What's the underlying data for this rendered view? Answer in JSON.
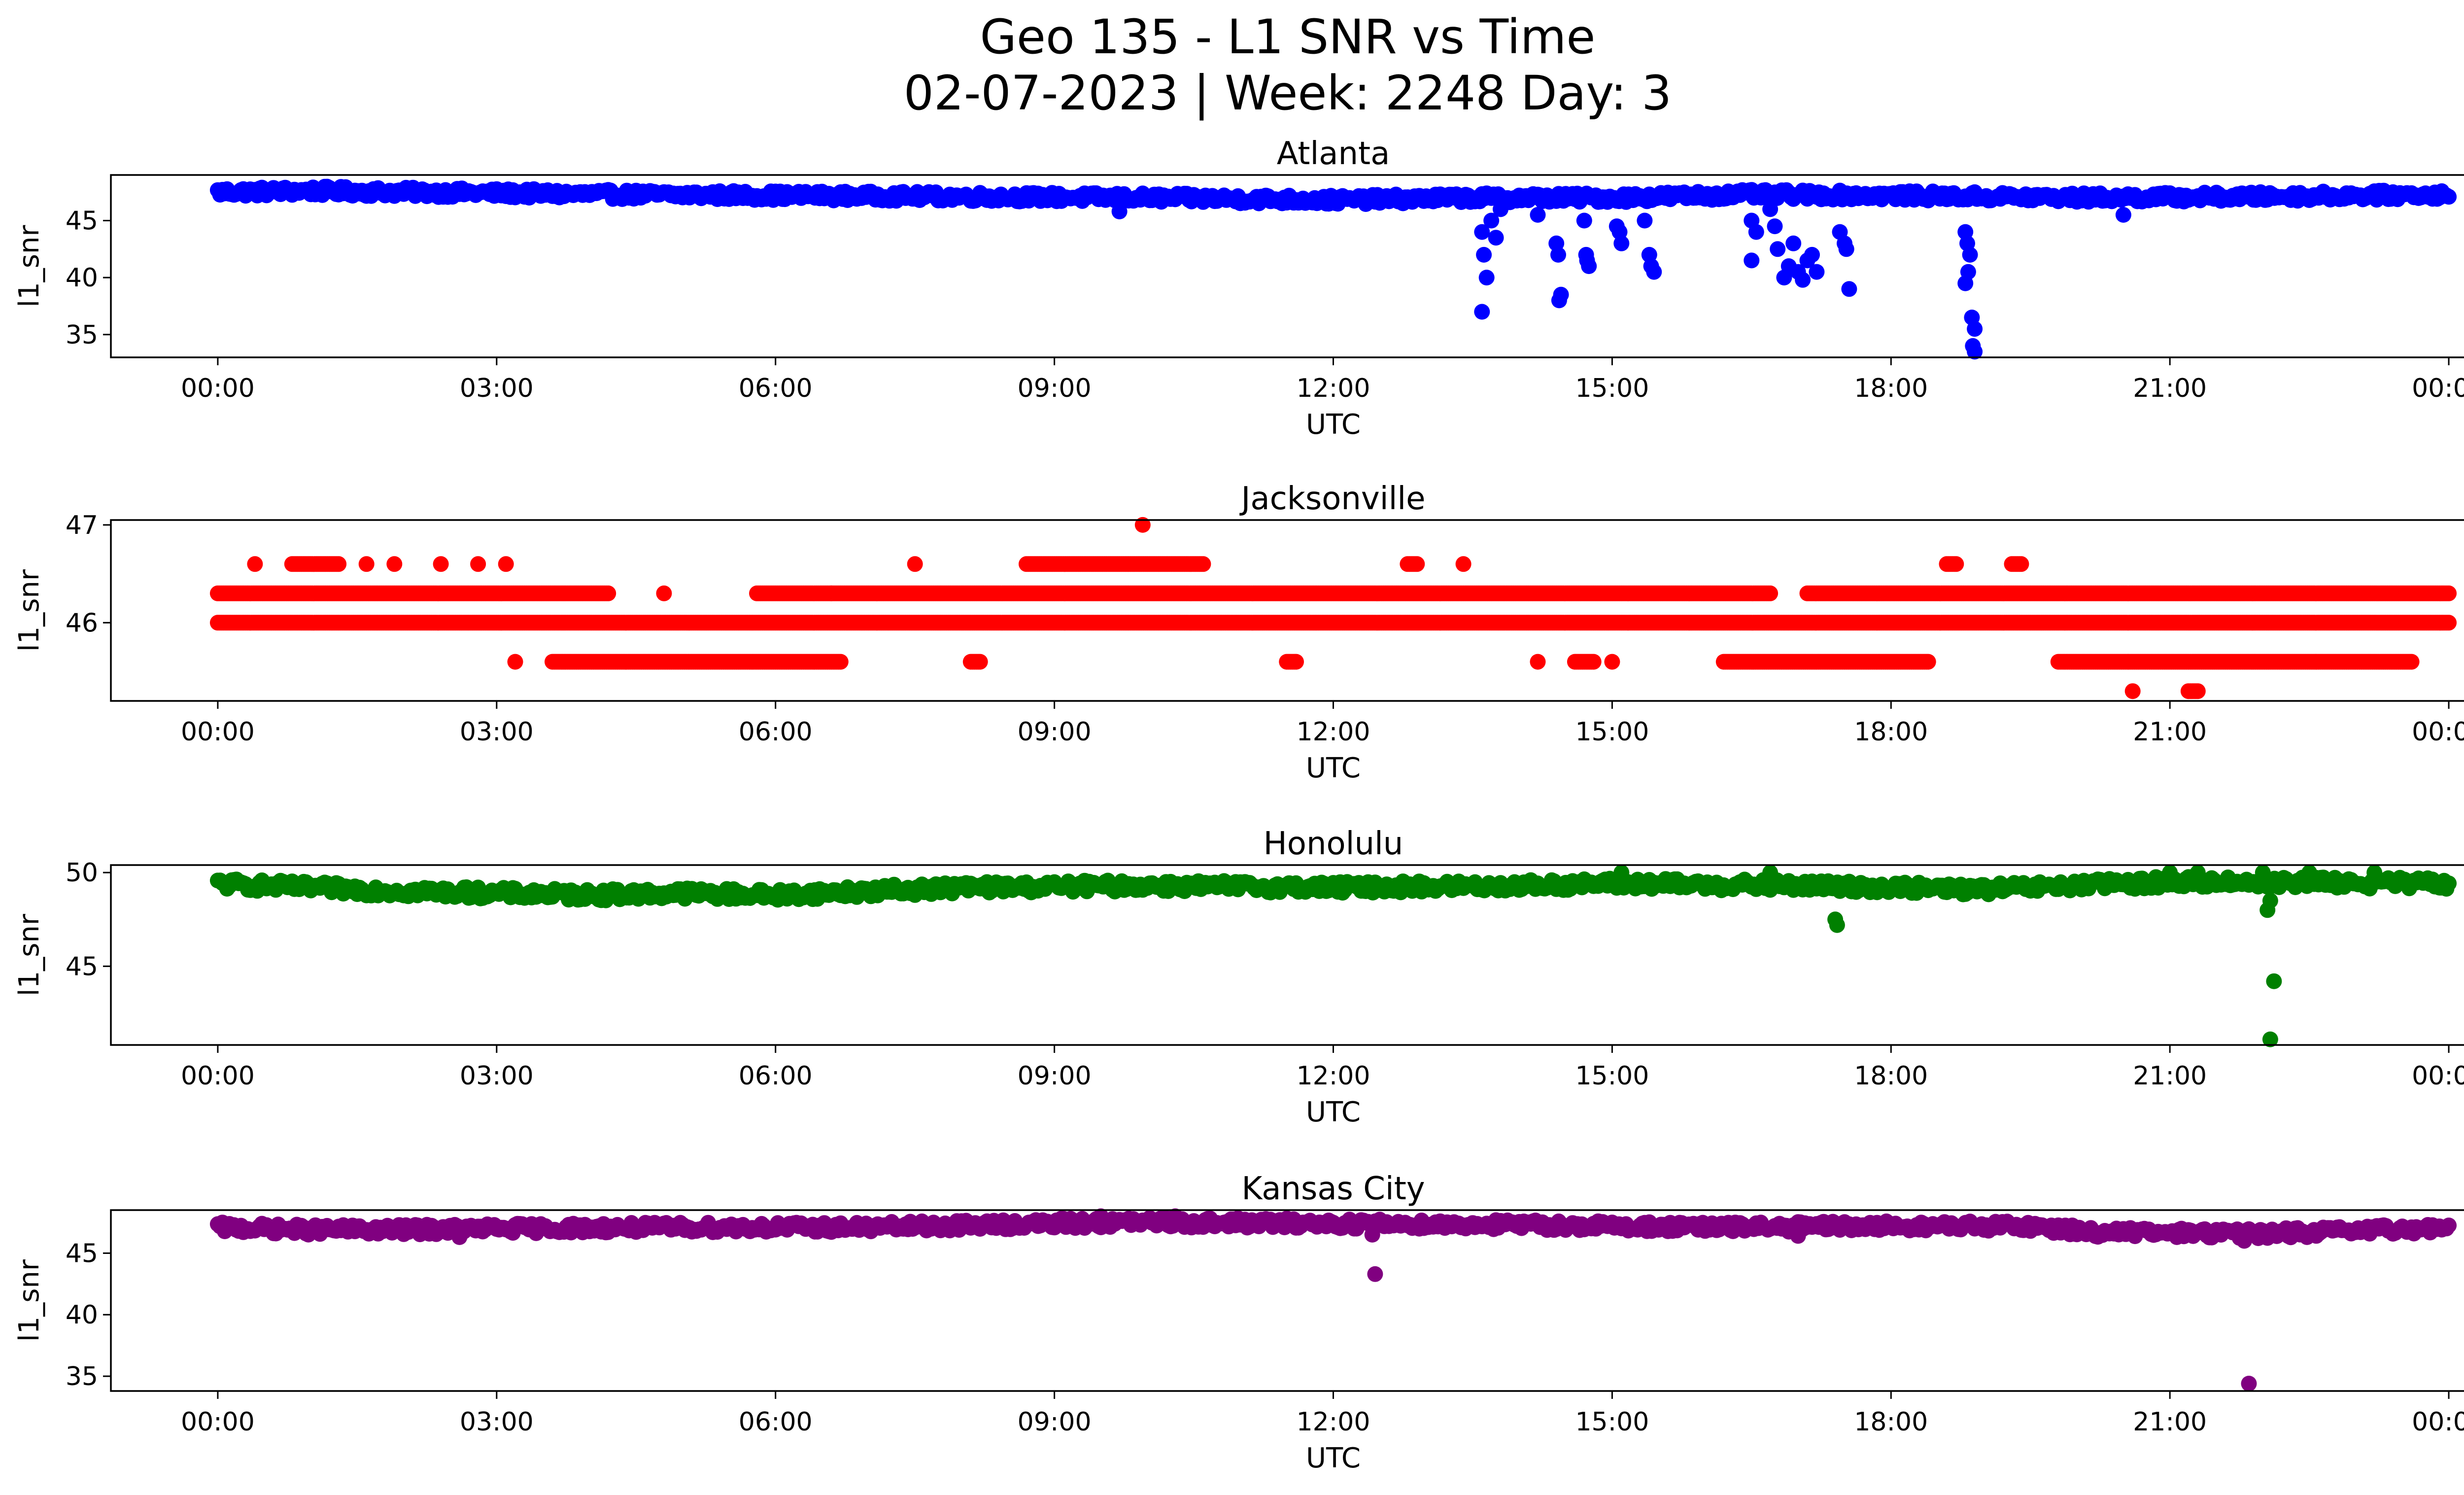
{
  "figure": {
    "title_line1": "Geo 135 - L1 SNR vs Time",
    "title_line2": "02-07-2023 | Week: 2248 Day: 3"
  },
  "chart_data": [
    {
      "type": "scatter",
      "title": "Atlanta",
      "xlabel": "UTC",
      "ylabel": "l1_snr",
      "color": "#0000ff",
      "xlim_hours": [
        -1.15,
        25.15
      ],
      "ylim": [
        33,
        49
      ],
      "xticks": [
        "00:00",
        "03:00",
        "06:00",
        "09:00",
        "12:00",
        "15:00",
        "18:00",
        "21:00",
        "00:00"
      ],
      "yticks": [
        35,
        40,
        45
      ],
      "baseline": [
        [
          0,
          47.5
        ],
        [
          1,
          47.6
        ],
        [
          2,
          47.5
        ],
        [
          3,
          47.4
        ],
        [
          4,
          47.3
        ],
        [
          6,
          47.2
        ],
        [
          8,
          47.1
        ],
        [
          10,
          47.0
        ],
        [
          12,
          46.8
        ],
        [
          13.5,
          47.0
        ],
        [
          15,
          47.0
        ],
        [
          16.5,
          47.3
        ],
        [
          18,
          47.2
        ],
        [
          20,
          47.0
        ],
        [
          22,
          47.1
        ],
        [
          24,
          47.3
        ]
      ],
      "band": 0.8,
      "outliers": [
        [
          13.6,
          44
        ],
        [
          13.62,
          42
        ],
        [
          13.65,
          40
        ],
        [
          13.6,
          37
        ],
        [
          13.7,
          45
        ],
        [
          13.8,
          46
        ],
        [
          13.75,
          43.5
        ],
        [
          14.2,
          45.5
        ],
        [
          14.4,
          43
        ],
        [
          14.42,
          42
        ],
        [
          14.45,
          38.5
        ],
        [
          14.43,
          38
        ],
        [
          14.7,
          45
        ],
        [
          14.72,
          42
        ],
        [
          14.75,
          41
        ],
        [
          14.73,
          41.5
        ],
        [
          15.05,
          44.5
        ],
        [
          15.1,
          43
        ],
        [
          15.08,
          44
        ],
        [
          15.35,
          45
        ],
        [
          15.4,
          42
        ],
        [
          15.42,
          41
        ],
        [
          15.45,
          40.5
        ],
        [
          16.5,
          45
        ],
        [
          16.55,
          44
        ],
        [
          16.5,
          41.5
        ],
        [
          16.7,
          46
        ],
        [
          16.75,
          44.5
        ],
        [
          16.78,
          42.5
        ],
        [
          16.85,
          40
        ],
        [
          16.9,
          41
        ],
        [
          17.0,
          40.5
        ],
        [
          17.05,
          39.8
        ],
        [
          17.1,
          41.5
        ],
        [
          17.15,
          42
        ],
        [
          16.95,
          43
        ],
        [
          17.2,
          40.5
        ],
        [
          17.45,
          44
        ],
        [
          17.5,
          43
        ],
        [
          17.52,
          42.5
        ],
        [
          17.55,
          39
        ],
        [
          18.8,
          44
        ],
        [
          18.82,
          43
        ],
        [
          18.85,
          42
        ],
        [
          18.83,
          40.5
        ],
        [
          18.8,
          39.5
        ],
        [
          18.87,
          36.5
        ],
        [
          18.9,
          35.5
        ],
        [
          18.88,
          34
        ],
        [
          18.9,
          33.5
        ],
        [
          20.5,
          45.5
        ],
        [
          9.7,
          45.8
        ]
      ]
    },
    {
      "type": "scatter",
      "title": "Jacksonville",
      "xlabel": "UTC",
      "ylabel": "l1_snr",
      "color": "#ff0000",
      "xlim_hours": [
        -1.15,
        25.15
      ],
      "ylim": [
        45.2,
        47.05
      ],
      "xticks": [
        "00:00",
        "03:00",
        "06:00",
        "09:00",
        "12:00",
        "15:00",
        "18:00",
        "21:00",
        "00:00"
      ],
      "yticks": [
        46,
        47
      ],
      "levels": [
        {
          "y": 46.0,
          "segments": [
            [
              0,
              24
            ]
          ]
        },
        {
          "y": 46.3,
          "segments": [
            [
              0,
              4.2
            ],
            [
              4.8,
              4.8
            ],
            [
              5.8,
              6.6
            ],
            [
              6.6,
              16.7
            ],
            [
              17.1,
              24
            ]
          ]
        },
        {
          "y": 45.6,
          "segments": [
            [
              3.2,
              3.2
            ],
            [
              3.6,
              6.7
            ],
            [
              8.1,
              8.2
            ],
            [
              11.5,
              11.6
            ],
            [
              14.2,
              14.2
            ],
            [
              14.6,
              14.8
            ],
            [
              15.0,
              15.0
            ],
            [
              16.2,
              18.4
            ],
            [
              19.8,
              23.6
            ]
          ]
        },
        {
          "y": 46.6,
          "segments": [
            [
              0.4,
              0.4
            ],
            [
              0.8,
              1.3
            ],
            [
              1.6,
              1.6
            ],
            [
              1.9,
              1.9
            ],
            [
              2.4,
              2.4
            ],
            [
              2.8,
              2.8
            ],
            [
              3.1,
              3.1
            ],
            [
              7.5,
              7.5
            ],
            [
              8.7,
              10.6
            ],
            [
              12.8,
              12.9
            ],
            [
              13.4,
              13.4
            ],
            [
              18.6,
              18.7
            ],
            [
              19.3,
              19.4
            ]
          ]
        },
        {
          "y": 45.3,
          "segments": [
            [
              20.6,
              20.6
            ],
            [
              21.2,
              21.3
            ]
          ]
        }
      ],
      "outliers": [
        [
          9.95,
          47.0
        ]
      ]
    },
    {
      "type": "scatter",
      "title": "Honolulu",
      "xlabel": "UTC",
      "ylabel": "l1_snr",
      "color": "#008000",
      "xlim_hours": [
        -1.15,
        25.15
      ],
      "ylim": [
        40.8,
        50.4
      ],
      "xticks": [
        "00:00",
        "03:00",
        "06:00",
        "09:00",
        "12:00",
        "15:00",
        "18:00",
        "21:00",
        "00:00"
      ],
      "yticks": [
        45,
        50
      ],
      "baseline": [
        [
          0,
          49.4
        ],
        [
          1,
          49.2
        ],
        [
          2,
          49.0
        ],
        [
          3,
          48.9
        ],
        [
          4,
          48.8
        ],
        [
          5,
          48.9
        ],
        [
          6,
          48.8
        ],
        [
          7,
          49.0
        ],
        [
          8,
          49.2
        ],
        [
          10,
          49.3
        ],
        [
          12,
          49.2
        ],
        [
          14,
          49.3
        ],
        [
          15,
          49.4
        ],
        [
          17,
          49.3
        ],
        [
          18,
          49.2
        ],
        [
          19,
          49.1
        ],
        [
          20,
          49.3
        ],
        [
          21,
          49.5
        ],
        [
          22,
          49.5
        ],
        [
          24,
          49.4
        ]
      ],
      "band": 0.6,
      "outliers": [
        [
          17.4,
          47.5
        ],
        [
          17.42,
          47.2
        ],
        [
          15.1,
          50
        ],
        [
          16.7,
          50
        ],
        [
          21.0,
          50
        ],
        [
          21.3,
          50
        ],
        [
          22.0,
          50
        ],
        [
          22.5,
          50
        ],
        [
          23.2,
          50
        ],
        [
          22.05,
          48.0
        ],
        [
          22.08,
          48.5
        ],
        [
          22.12,
          44.2
        ],
        [
          22.08,
          41.1
        ]
      ]
    },
    {
      "type": "scatter",
      "title": "Kansas City",
      "xlabel": "UTC",
      "ylabel": "l1_snr",
      "color": "#800080",
      "xlim_hours": [
        -1.15,
        25.15
      ],
      "ylim": [
        33.8,
        48.5
      ],
      "xticks": [
        "00:00",
        "03:00",
        "06:00",
        "09:00",
        "12:00",
        "15:00",
        "18:00",
        "21:00",
        "00:00"
      ],
      "yticks": [
        35,
        40,
        45
      ],
      "baseline": [
        [
          0,
          47.1
        ],
        [
          1,
          46.9
        ],
        [
          2,
          46.9
        ],
        [
          3,
          47.0
        ],
        [
          5,
          47.1
        ],
        [
          7,
          47.1
        ],
        [
          9,
          47.4
        ],
        [
          10,
          47.5
        ],
        [
          12,
          47.4
        ],
        [
          14,
          47.3
        ],
        [
          16,
          47.1
        ],
        [
          18,
          47.2
        ],
        [
          19.5,
          47.2
        ],
        [
          20.2,
          46.7
        ],
        [
          22,
          46.6
        ],
        [
          23,
          46.8
        ],
        [
          24,
          47.1
        ]
      ],
      "band": 0.8,
      "outliers": [
        [
          12.42,
          46.5
        ],
        [
          12.45,
          43.3
        ],
        [
          21.8,
          46.0
        ],
        [
          21.85,
          34.4
        ],
        [
          9.5,
          48.0
        ],
        [
          10.3,
          48.0
        ],
        [
          2.6,
          46.3
        ],
        [
          17.0,
          46.4
        ]
      ]
    }
  ]
}
